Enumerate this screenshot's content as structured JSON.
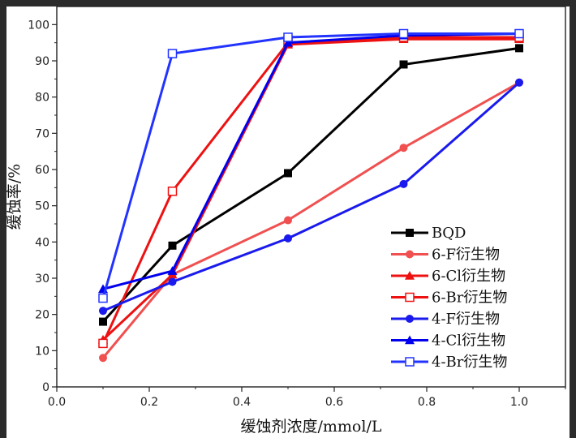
{
  "chart_data": {
    "type": "line",
    "xlabel": "缓蚀剂浓度/mmol/L",
    "ylabel": "缓蚀率/%",
    "xlim": [
      0.0,
      1.1
    ],
    "ylim": [
      0,
      105
    ],
    "x_ticks": [
      "0.0",
      "0.2",
      "0.4",
      "0.6",
      "0.8",
      "1.0"
    ],
    "y_ticks": [
      "0",
      "10",
      "20",
      "30",
      "40",
      "50",
      "60",
      "70",
      "80",
      "90",
      "100"
    ],
    "grid": false,
    "legend_position": "bottom-right",
    "series": [
      {
        "name": "BQD",
        "color": "#000000",
        "marker": "square-filled",
        "x": [
          0.1,
          0.25,
          0.5,
          0.75,
          1.0
        ],
        "values": [
          18,
          39,
          59,
          89,
          93.5
        ]
      },
      {
        "name": "6-F衍生物",
        "color": "#f05050",
        "marker": "circle-filled",
        "x": [
          0.1,
          0.25,
          0.5,
          0.75,
          1.0
        ],
        "values": [
          8,
          31,
          46,
          66,
          84
        ]
      },
      {
        "name": "6-Cl衍生物",
        "color": "#ee1111",
        "marker": "triangle-filled",
        "x": [
          0.1,
          0.25,
          0.5,
          0.75,
          1.0
        ],
        "values": [
          13,
          31,
          94.5,
          96,
          96
        ]
      },
      {
        "name": "6-Br衍生物",
        "color": "#ee1111",
        "marker": "square-open",
        "x": [
          0.1,
          0.25,
          0.5,
          0.75,
          1.0
        ],
        "values": [
          12,
          54,
          95,
          96.5,
          96.5
        ]
      },
      {
        "name": "4-F衍生物",
        "color": "#1a1aee",
        "marker": "circle-filled",
        "x": [
          0.1,
          0.25,
          0.5,
          0.75,
          1.0
        ],
        "values": [
          21,
          29,
          41,
          56,
          84
        ]
      },
      {
        "name": "4-Cl衍生物",
        "color": "#0000ee",
        "marker": "triangle-filled",
        "x": [
          0.1,
          0.25,
          0.5,
          0.75,
          1.0
        ],
        "values": [
          27,
          32,
          95,
          97,
          97.5
        ]
      },
      {
        "name": "4-Br衍生物",
        "color": "#2233ff",
        "marker": "square-open",
        "x": [
          0.1,
          0.25,
          0.5,
          0.75,
          1.0
        ],
        "values": [
          24.5,
          92,
          96.5,
          97.5,
          97.5
        ]
      }
    ]
  }
}
